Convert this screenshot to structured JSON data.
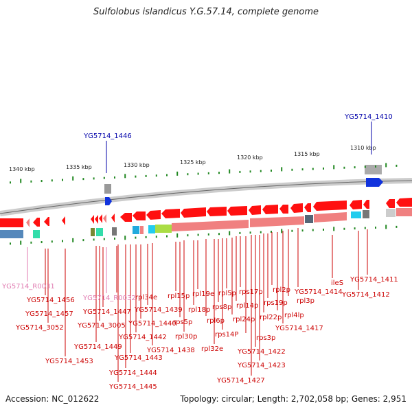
{
  "title": "Sulfolobus islandicus Y.G.57.14, complete genome",
  "footer": {
    "accession": "Accession: NC_012622",
    "summary": "Topology: circular; Length: 2,702,058 bp; Genes: 2,951"
  },
  "ruler_ticks": [
    "1340 kbp",
    "1335 kbp",
    "1330 kbp",
    "1325 kbp",
    "1320 kbp",
    "1315 kbp",
    "1310 kbp"
  ],
  "colors": {
    "label_red": "#cc0000",
    "label_blue": "#0000aa",
    "label_pink": "#e07ab0",
    "gene_red": "#ff1010",
    "gene_pink": "#f08080",
    "gene_blue": "#2255cc",
    "gene_gray": "#999999",
    "gene_lime": "#aadd44",
    "gene_cyan": "#22ccee",
    "gene_teal": "#33ddaa",
    "tick_green": "#228822"
  },
  "top_labels": [
    {
      "text": "YG5714_1446",
      "color": "label_blue"
    },
    {
      "text": "YG5714_1410",
      "color": "label_blue"
    }
  ],
  "labels": [
    {
      "text": "YG5714_R0031",
      "color": "label_pink"
    },
    {
      "text": "YG5714_1456",
      "color": "label_red"
    },
    {
      "text": "YG5714_1457",
      "color": "label_red"
    },
    {
      "text": "YG5714_3052",
      "color": "label_red"
    },
    {
      "text": "YG5714_1453",
      "color": "label_red"
    },
    {
      "text": "YG5714_R0032",
      "color": "label_pink"
    },
    {
      "text": "YG5714_1447",
      "color": "label_red"
    },
    {
      "text": "YG5714_3005",
      "color": "label_red"
    },
    {
      "text": "YG5714_1449",
      "color": "label_red"
    },
    {
      "text": "rpl34e",
      "color": "label_red"
    },
    {
      "text": "YG5714_1440",
      "color": "label_red"
    },
    {
      "text": "YG5714_1442",
      "color": "label_red"
    },
    {
      "text": "YG5714_1443",
      "color": "label_red"
    },
    {
      "text": "YG5714_1444",
      "color": "label_red"
    },
    {
      "text": "YG5714_1445",
      "color": "label_red"
    },
    {
      "text": "YG5714_1439",
      "color": "label_red"
    },
    {
      "text": "YG5714_1438",
      "color": "label_red"
    },
    {
      "text": "rpl15p",
      "color": "label_red"
    },
    {
      "text": "rps5p",
      "color": "label_red"
    },
    {
      "text": "rpl30p",
      "color": "label_red"
    },
    {
      "text": "rpl18p",
      "color": "label_red"
    },
    {
      "text": "rpl19e",
      "color": "label_red"
    },
    {
      "text": "rpl6p",
      "color": "label_red"
    },
    {
      "text": "rpl32e",
      "color": "label_red"
    },
    {
      "text": "rps8p",
      "color": "label_red"
    },
    {
      "text": "rps14P",
      "color": "label_red"
    },
    {
      "text": "rpl5p",
      "color": "label_red"
    },
    {
      "text": "rpl24p",
      "color": "label_red"
    },
    {
      "text": "rpl14p",
      "color": "label_red"
    },
    {
      "text": "rps17p",
      "color": "label_red"
    },
    {
      "text": "rps3p",
      "color": "label_red"
    },
    {
      "text": "YG5714_1427",
      "color": "label_red"
    },
    {
      "text": "YG5714_1422",
      "color": "label_red"
    },
    {
      "text": "YG5714_1423",
      "color": "label_red"
    },
    {
      "text": "rpl22p",
      "color": "label_red"
    },
    {
      "text": "rps19p",
      "color": "label_red"
    },
    {
      "text": "rpl2p",
      "color": "label_red"
    },
    {
      "text": "rpl4lp",
      "color": "label_red"
    },
    {
      "text": "YG5714_1417",
      "color": "label_red"
    },
    {
      "text": "rpl3p",
      "color": "label_red"
    },
    {
      "text": "YG5714_1414",
      "color": "label_red"
    },
    {
      "text": "ileS",
      "color": "label_red"
    },
    {
      "text": "YG5714_1411",
      "color": "label_red"
    },
    {
      "text": "YG5714_1412",
      "color": "label_red"
    }
  ]
}
